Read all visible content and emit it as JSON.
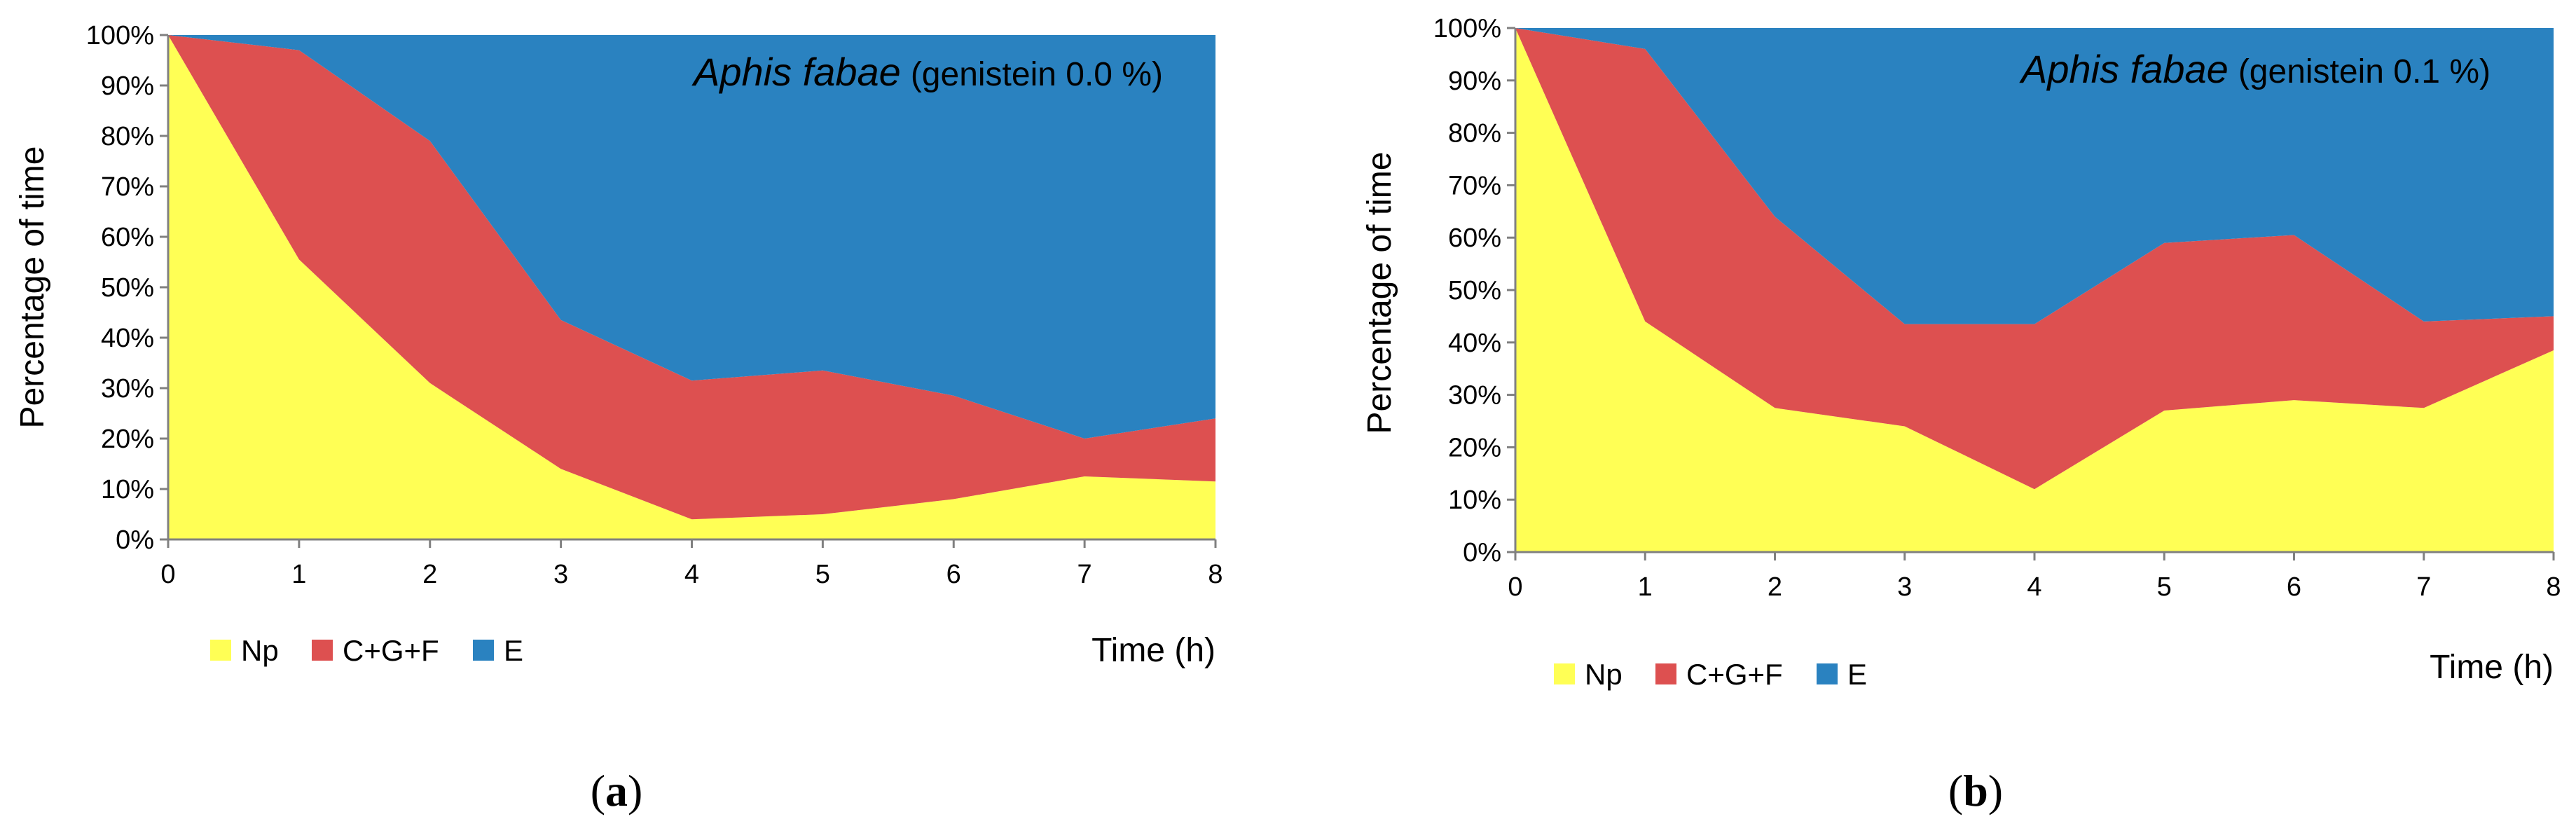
{
  "colors": {
    "Np": "#ffff55",
    "C+G+F": "#dd5050",
    "E": "#2a82c0"
  },
  "chart_data": [
    {
      "panel_label": "a",
      "type": "area",
      "stacked": true,
      "annotation_species": "Aphis fabae",
      "annotation_condition": "(genistein 0.0 %)",
      "xlabel": "Time (h)",
      "ylabel": "Percentage of time",
      "x": [
        0,
        1,
        2,
        3,
        4,
        5,
        6,
        7,
        8
      ],
      "xlim": [
        0,
        8
      ],
      "ylim": [
        0,
        100
      ],
      "y_ticks": [
        "0%",
        "10%",
        "20%",
        "30%",
        "40%",
        "50%",
        "60%",
        "70%",
        "80%",
        "90%",
        "100%"
      ],
      "x_ticks": [
        "0",
        "1",
        "2",
        "3",
        "4",
        "5",
        "6",
        "7",
        "8"
      ],
      "series": [
        {
          "name": "Np",
          "values": [
            100,
            55.5,
            31,
            14,
            4,
            5,
            8,
            12.5,
            11.5
          ]
        },
        {
          "name": "C+G+F",
          "values": [
            0,
            41.5,
            48,
            29.5,
            27.5,
            28.5,
            20.5,
            7.5,
            12.5
          ]
        },
        {
          "name": "E",
          "values": [
            0,
            3,
            21,
            56.5,
            68.5,
            66.5,
            71.5,
            80,
            76
          ]
        }
      ],
      "legend": [
        "Np",
        "C+G+F",
        "E"
      ],
      "legend_position": "bottom-left"
    },
    {
      "panel_label": "b",
      "type": "area",
      "stacked": true,
      "annotation_species": "Aphis fabae",
      "annotation_condition": "(genistein 0.1 %)",
      "xlabel": "Time (h)",
      "ylabel": "Percentage of time",
      "x": [
        0,
        1,
        2,
        3,
        4,
        5,
        6,
        7,
        8
      ],
      "xlim": [
        0,
        8
      ],
      "ylim": [
        0,
        100
      ],
      "y_ticks": [
        "0%",
        "10%",
        "20%",
        "30%",
        "40%",
        "50%",
        "60%",
        "70%",
        "80%",
        "90%",
        "100%"
      ],
      "x_ticks": [
        "0",
        "1",
        "2",
        "3",
        "4",
        "5",
        "6",
        "7",
        "8"
      ],
      "series": [
        {
          "name": "Np",
          "values": [
            100,
            44,
            27.5,
            24,
            12,
            27,
            29,
            27.5,
            38.5
          ]
        },
        {
          "name": "C+G+F",
          "values": [
            0,
            52,
            36.5,
            19.5,
            31.5,
            32,
            31.5,
            16.5,
            6.5
          ]
        },
        {
          "name": "E",
          "values": [
            0,
            4,
            36,
            56.5,
            56.5,
            41,
            39.5,
            56,
            55
          ]
        }
      ],
      "legend": [
        "Np",
        "C+G+F",
        "E"
      ],
      "legend_position": "bottom-left"
    }
  ]
}
